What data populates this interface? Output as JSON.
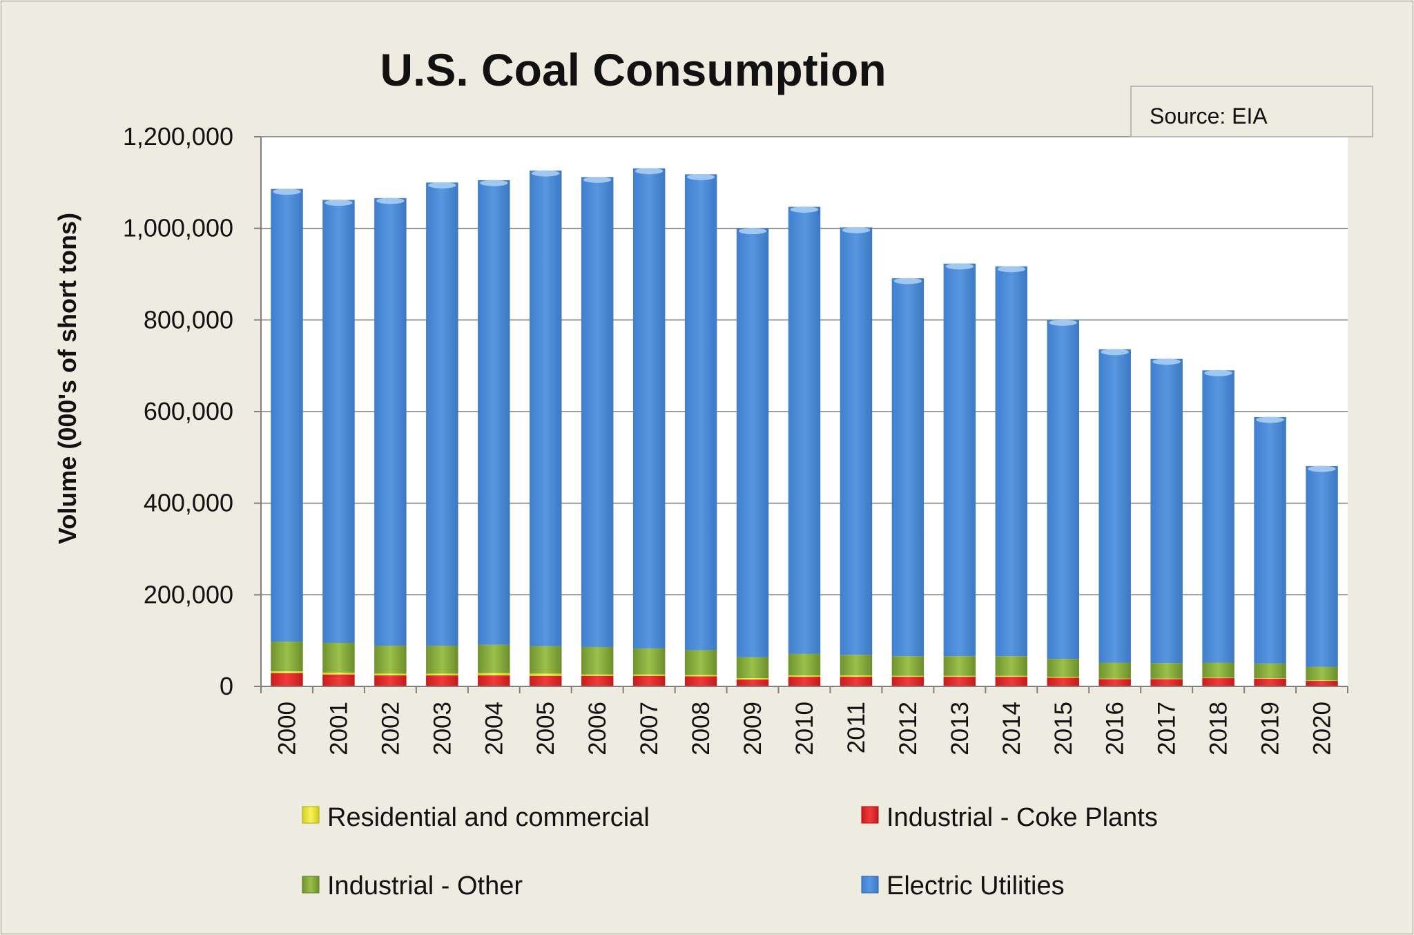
{
  "chart_data": {
    "type": "bar",
    "stacked": true,
    "title": "U.S. Coal Consumption",
    "ylabel": "Volume (000's of short tons)",
    "xlabel": "",
    "source_note": "Source: EIA",
    "ylim": [
      0,
      1200000
    ],
    "yticks": [
      0,
      200000,
      400000,
      600000,
      800000,
      1000000,
      1200000
    ],
    "ytick_labels": [
      "0",
      "200,000",
      "400,000",
      "600,000",
      "800,000",
      "1,000,000",
      "1,200,000"
    ],
    "grid": true,
    "legend_position": "bottom",
    "categories": [
      "2000",
      "2001",
      "2002",
      "2003",
      "2004",
      "2005",
      "2006",
      "2007",
      "2008",
      "2009",
      "2010",
      "2011",
      "2012",
      "2013",
      "2014",
      "2015",
      "2016",
      "2017",
      "2018",
      "2019",
      "2020"
    ],
    "series": [
      {
        "name": "Industrial - Coke Plants",
        "color": "#e8262a",
        "values": [
          29000,
          26000,
          24000,
          24000,
          24000,
          23000,
          23000,
          23000,
          22000,
          15000,
          21000,
          21000,
          21000,
          21000,
          21000,
          19000,
          16000,
          16000,
          18000,
          17000,
          12000
        ]
      },
      {
        "name": "Residential and commercial",
        "color": "#e8e63a",
        "values": [
          4000,
          4000,
          4000,
          4000,
          5000,
          5000,
          3000,
          3000,
          3000,
          3000,
          3000,
          3000,
          2000,
          2000,
          2000,
          2000,
          1000,
          1000,
          1000,
          1000,
          1000
        ]
      },
      {
        "name": "Industrial - Other",
        "color": "#86a83a",
        "values": [
          65000,
          65000,
          61000,
          61000,
          62000,
          60000,
          60000,
          57000,
          54000,
          46000,
          47000,
          45000,
          43000,
          43000,
          43000,
          39000,
          35000,
          34000,
          33000,
          32000,
          30000
        ]
      },
      {
        "name": "Electric Utilities",
        "color": "#4a8ad6",
        "values": [
          988000,
          967000,
          977000,
          1011000,
          1014000,
          1038000,
          1026000,
          1048000,
          1039000,
          936000,
          976000,
          933000,
          825000,
          857000,
          851000,
          740000,
          684000,
          664000,
          638000,
          538000,
          438000
        ]
      }
    ],
    "legend_entries": [
      {
        "name": "Residential and commercial",
        "color": "#e8e63a"
      },
      {
        "name": "Industrial - Coke Plants",
        "color": "#e8262a"
      },
      {
        "name": "Industrial - Other",
        "color": "#86a83a"
      },
      {
        "name": "Electric Utilities",
        "color": "#4a8ad6"
      }
    ]
  }
}
